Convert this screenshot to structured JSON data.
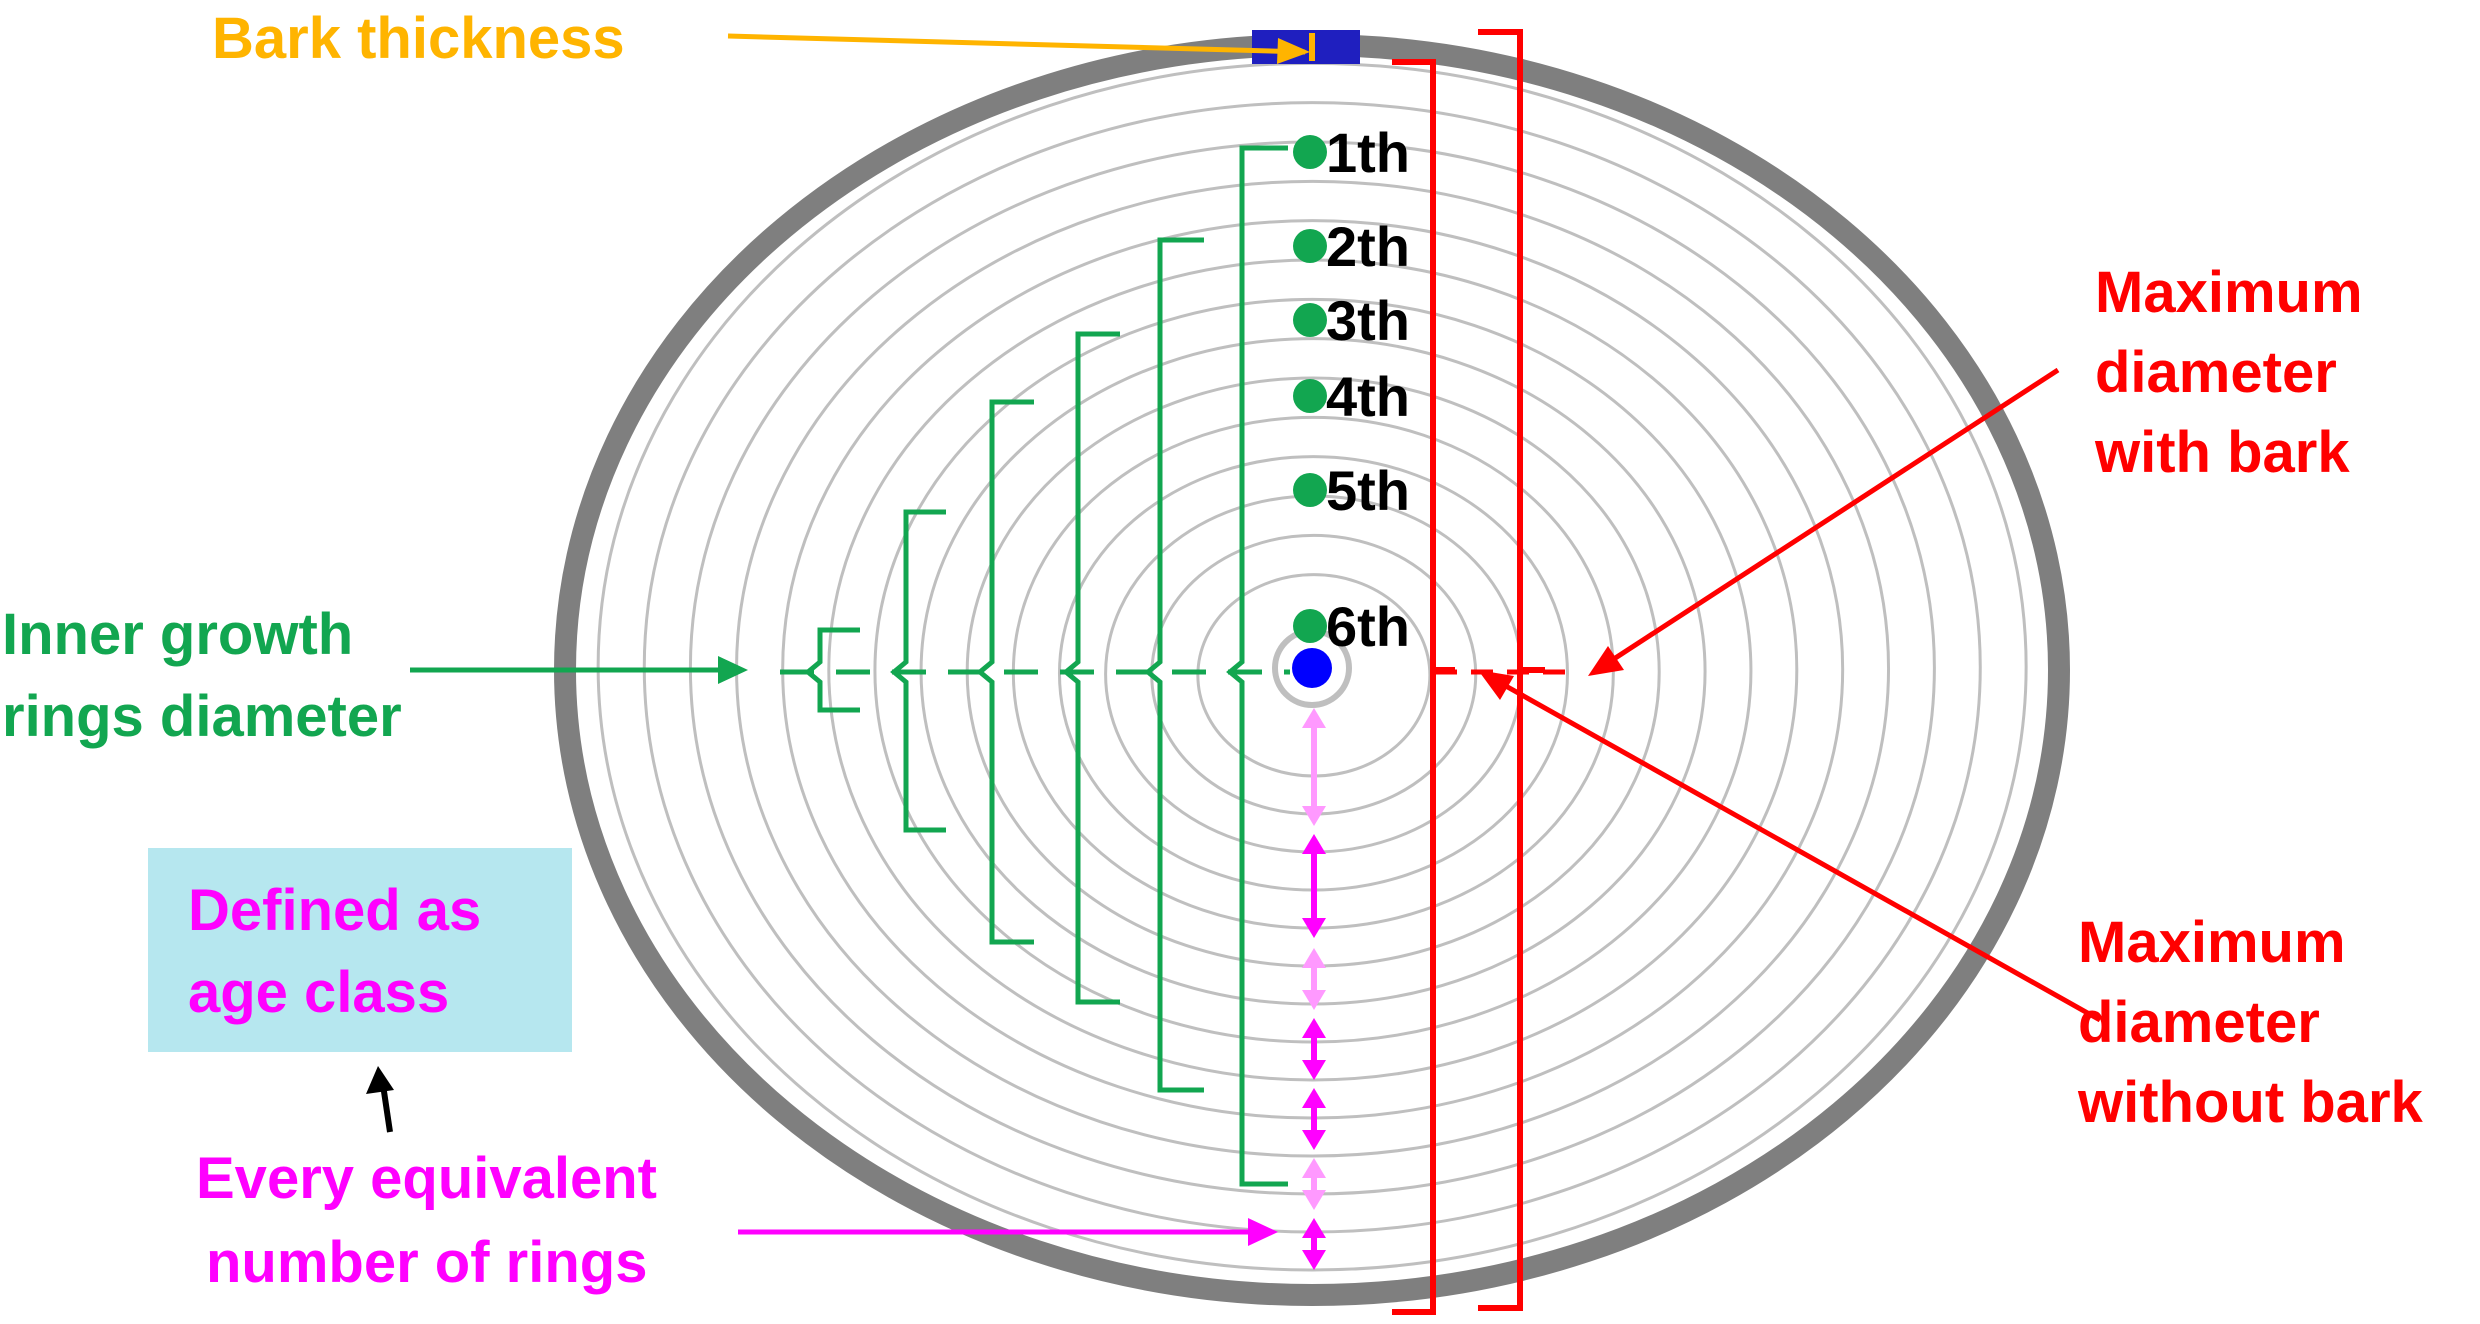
{
  "labels": {
    "bark_thickness": "Bark thickness",
    "max_with_bark": [
      "Maximum",
      "diameter",
      "with bark"
    ],
    "max_without_bark": [
      "Maximum",
      "diameter",
      "without bark"
    ],
    "inner_rings": [
      "Inner growth",
      "rings diameter"
    ],
    "age_class": [
      "Defined as",
      "age class"
    ],
    "equivalent_rings": [
      "Every equivalent",
      "number of rings"
    ]
  },
  "ring_markers": [
    "1th",
    "2th",
    "3th",
    "4th",
    "5th",
    "6th"
  ],
  "colors": {
    "bark": "#7f7f7f",
    "ring_line": "#bfbfbf",
    "green": "#12a650",
    "red": "#ff0000",
    "orange": "#ffb400",
    "magenta": "#ff00ff",
    "light_magenta": "#ff99ff",
    "pith": "#0000ff",
    "box": "#b6e7ef",
    "navy": "#1f1fbf"
  }
}
